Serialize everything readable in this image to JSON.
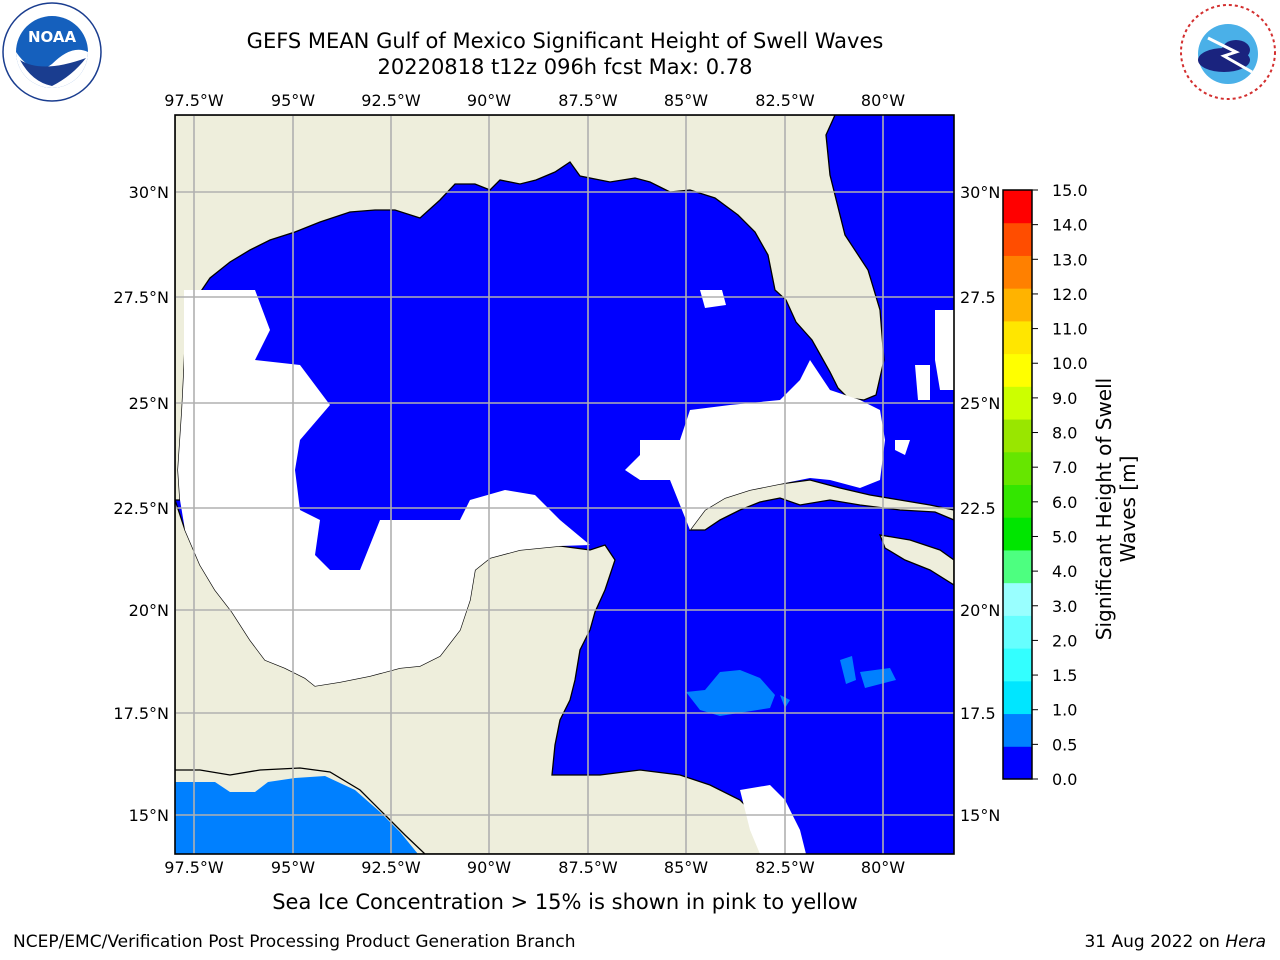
{
  "title": {
    "line1": "GEFS MEAN Gulf of Mexico Significant Height of Swell Waves",
    "line2": "20220818 t12z 096h fcst   Max: 0.78"
  },
  "logos": {
    "noaa": {
      "text": "NOAA",
      "ring_text": "NATIONAL OCEANIC AND ATMOSPHERIC ADMINISTRATION · U.S. DEPARTMENT OF COMMERCE"
    },
    "nws": {
      "ring_text": "NATIONAL WEATHER SERVICE"
    }
  },
  "map": {
    "lon_ticks": [
      "97.5°W",
      "95°W",
      "92.5°W",
      "90°W",
      "87.5°W",
      "85°W",
      "82.5°W",
      "80°W"
    ],
    "lat_ticks": [
      "30°N",
      "27.5°N",
      "25°N",
      "22.5°N",
      "20°N",
      "17.5°N",
      "15°N"
    ],
    "lat_ticks_right": [
      "30°N",
      "27.5",
      "25°N",
      "22.5",
      "20°N",
      "17.5",
      "15°N"
    ],
    "land_color": "#eeeedc",
    "ocean_color": "#0000ff",
    "nodata_color": "#ffffff",
    "light_blue_color": "#0080ff"
  },
  "colorbar": {
    "label_line1": "Significant Height of Swell",
    "label_line2": "Waves [m]",
    "ticks": [
      "0.0",
      "0.5",
      "1.0",
      "1.5",
      "2.0",
      "3.0",
      "4.0",
      "5.0",
      "6.0",
      "7.0",
      "8.0",
      "9.0",
      "10.0",
      "11.0",
      "12.0",
      "13.0",
      "14.0",
      "15.0"
    ],
    "colors": [
      "#0000ff",
      "#0080ff",
      "#00e6ff",
      "#33ffff",
      "#66ffff",
      "#99ffff",
      "#4dff80",
      "#00e600",
      "#33e600",
      "#66e600",
      "#99e600",
      "#ccff00",
      "#ffff00",
      "#ffe600",
      "#ffb300",
      "#ff8000",
      "#ff4d00",
      "#ff0000"
    ]
  },
  "note": "Sea Ice Concentration > 15% is shown in pink to yellow",
  "footer": {
    "left": "NCEP/EMC/Verification Post Processing Product Generation Branch",
    "right_prefix": "31 Aug 2022 on ",
    "right_machine": "Hera"
  }
}
